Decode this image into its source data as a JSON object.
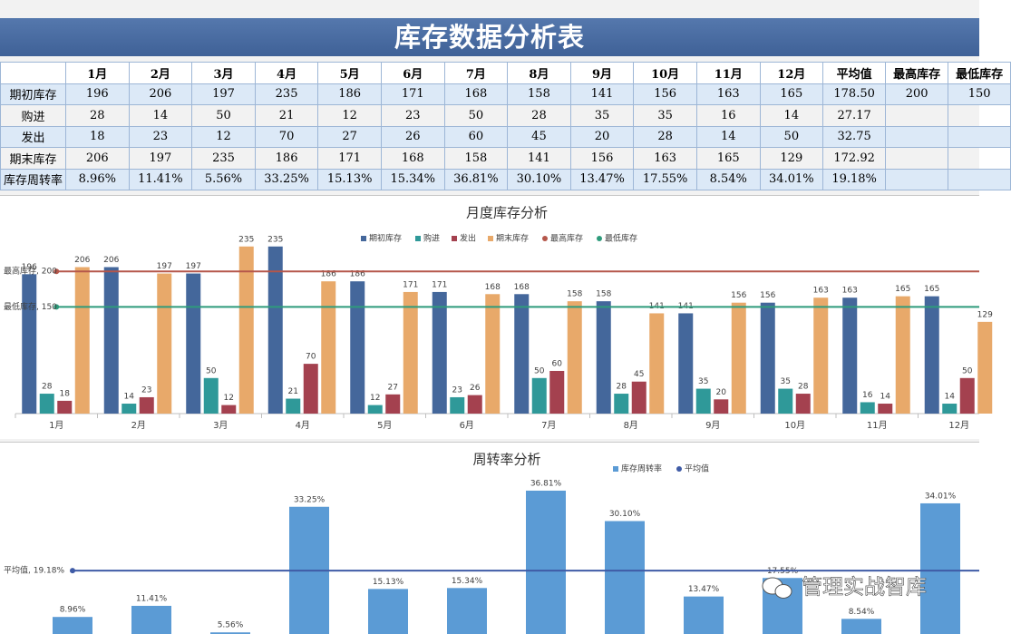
{
  "title": "库存数据分析表",
  "table": {
    "header": [
      "1月",
      "2月",
      "3月",
      "4月",
      "5月",
      "6月",
      "7月",
      "8月",
      "9月",
      "10月",
      "11月",
      "12月",
      "平均值",
      "最高库存",
      "最低库存"
    ],
    "rows": [
      {
        "label": "期初库存",
        "cells": [
          "196",
          "206",
          "197",
          "235",
          "186",
          "171",
          "168",
          "158",
          "141",
          "156",
          "163",
          "165",
          "178.50",
          "200",
          "150"
        ]
      },
      {
        "label": "购进",
        "cells": [
          "28",
          "14",
          "50",
          "21",
          "12",
          "23",
          "50",
          "28",
          "35",
          "35",
          "16",
          "14",
          "27.17"
        ]
      },
      {
        "label": "发出",
        "cells": [
          "18",
          "23",
          "12",
          "70",
          "27",
          "26",
          "60",
          "45",
          "20",
          "28",
          "14",
          "50",
          "32.75"
        ]
      },
      {
        "label": "期末库存",
        "cells": [
          "206",
          "197",
          "235",
          "186",
          "171",
          "168",
          "158",
          "141",
          "156",
          "163",
          "165",
          "129",
          "172.92"
        ]
      },
      {
        "label": "库存周转率",
        "cells": [
          "8.96%",
          "11.41%",
          "5.56%",
          "33.25%",
          "15.13%",
          "15.34%",
          "36.81%",
          "30.10%",
          "13.47%",
          "17.55%",
          "8.54%",
          "34.01%",
          "19.18%"
        ]
      }
    ]
  },
  "chart_data": [
    {
      "type": "bar",
      "title": "月度库存分析",
      "categories": [
        "1月",
        "2月",
        "3月",
        "4月",
        "5月",
        "6月",
        "7月",
        "8月",
        "9月",
        "10月",
        "11月",
        "12月"
      ],
      "ylim": [
        0,
        250
      ],
      "series": [
        {
          "name": "期初库存",
          "color": "#44679b",
          "values": [
            196,
            206,
            197,
            235,
            186,
            171,
            168,
            158,
            141,
            156,
            163,
            165
          ]
        },
        {
          "name": "购进",
          "color": "#2f9999",
          "values": [
            28,
            14,
            50,
            21,
            12,
            23,
            50,
            28,
            35,
            35,
            16,
            14
          ]
        },
        {
          "name": "发出",
          "color": "#a4414f",
          "values": [
            18,
            23,
            12,
            70,
            27,
            26,
            60,
            45,
            20,
            28,
            14,
            50
          ]
        },
        {
          "name": "期末库存",
          "color": "#e8a96a",
          "values": [
            206,
            197,
            235,
            186,
            171,
            168,
            158,
            141,
            156,
            163,
            165,
            129
          ]
        },
        {
          "name": "最高库存",
          "color": "#b5574b",
          "type": "line",
          "annotation": "最高库存, 200",
          "values": [
            200,
            200,
            200,
            200,
            200,
            200,
            200,
            200,
            200,
            200,
            200,
            200
          ]
        },
        {
          "name": "最低库存",
          "color": "#2e9b7b",
          "type": "line",
          "annotation": "最低库存, 150",
          "values": [
            150,
            150,
            150,
            150,
            150,
            150,
            150,
            150,
            150,
            150,
            150,
            150
          ]
        }
      ]
    },
    {
      "type": "bar",
      "title": "周转率分析",
      "ylim": [
        0,
        40
      ],
      "series": [
        {
          "name": "库存周转率",
          "color": "#5b9bd5",
          "values": [
            8.96,
            11.41,
            5.56,
            33.25,
            15.13,
            15.34,
            36.81,
            30.1,
            13.47,
            17.55,
            8.54,
            34.01
          ],
          "value_labels": [
            "8.96%",
            "11.41%",
            "5.56%",
            "33.25%",
            "15.13%",
            "15.34%",
            "36.81%",
            "30.10%",
            "13.47%",
            "17.55%",
            "8.54%",
            "34.01%"
          ]
        },
        {
          "name": "平均值",
          "color": "#3f5ba6",
          "type": "line",
          "annotation": "平均值, 19.18%",
          "values": [
            19.18,
            19.18,
            19.18,
            19.18,
            19.18,
            19.18,
            19.18,
            19.18,
            19.18,
            19.18,
            19.18,
            19.18
          ]
        }
      ]
    }
  ],
  "watermark": "管理实战智库"
}
